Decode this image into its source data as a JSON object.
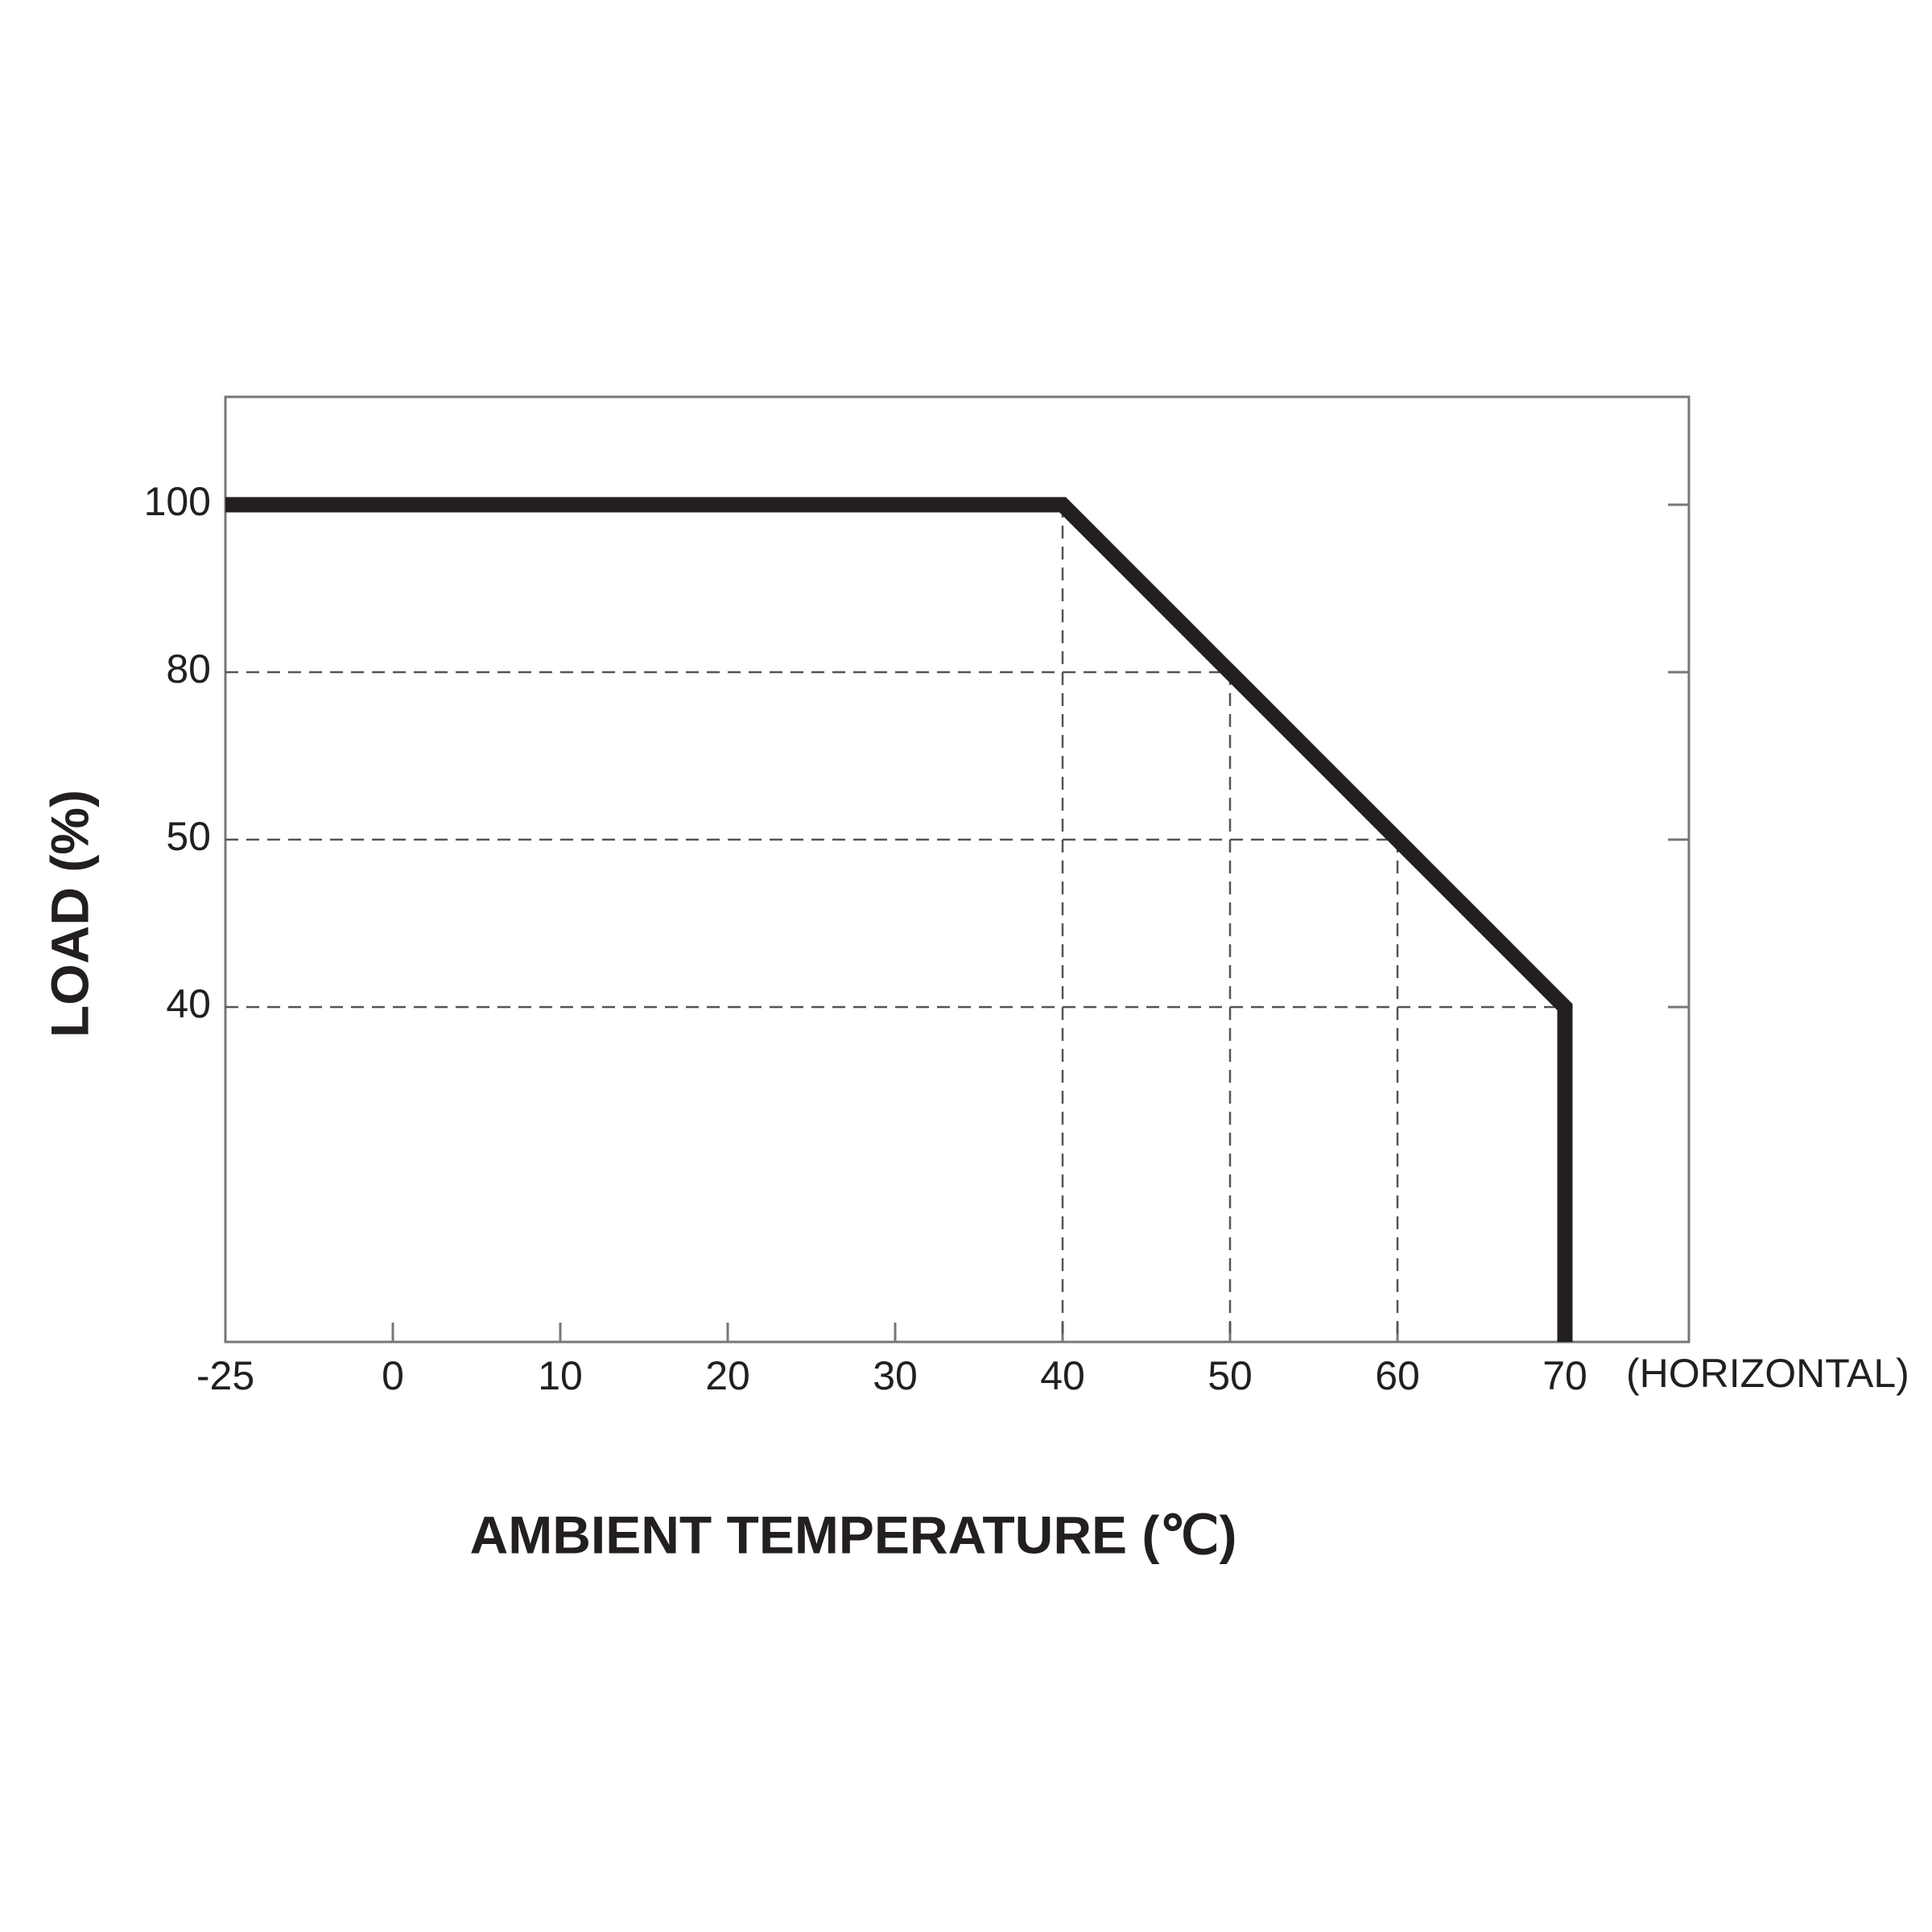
{
  "chart_data": {
    "type": "line",
    "x_label": "AMBIENT TEMPERATURE (℃)",
    "y_label": "LOAD (%)",
    "x_note": "(HORIZONTAL)",
    "x": [
      -25,
      40,
      50,
      60,
      70,
      70
    ],
    "series": [
      {
        "name": "LOAD",
        "color": "#231f20",
        "values": [
          100,
          100,
          80,
          50,
          40,
          0
        ]
      }
    ],
    "xlim": [
      -25,
      77
    ],
    "xticks": [
      -25,
      0,
      10,
      20,
      30,
      40,
      50,
      60,
      70
    ],
    "ylim": [
      0,
      110
    ],
    "yticks": [
      100,
      80,
      50,
      40
    ],
    "xscale": "tick-spaced",
    "yscale": "tick-spaced",
    "grid": "dashed-guides"
  }
}
